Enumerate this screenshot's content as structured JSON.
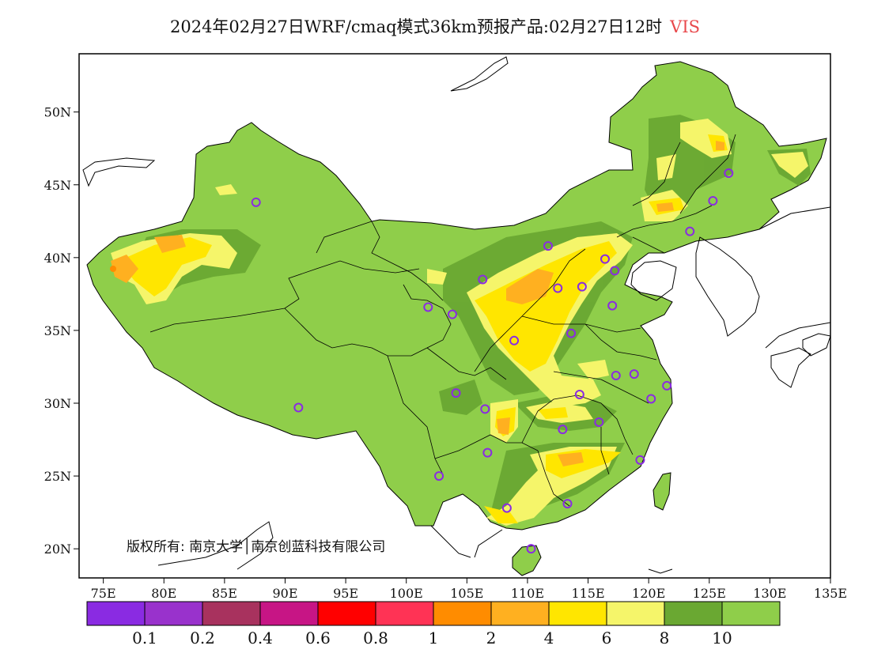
{
  "title": {
    "main": "2024年02月27日WRF/cmaq模式36km预报产品:02月27日12时",
    "variable": "VIS"
  },
  "axes": {
    "lon_min": 73,
    "lon_max": 135,
    "lat_min": 18,
    "lat_max": 54,
    "x_ticks": [
      {
        "lon": 75,
        "label": "75E"
      },
      {
        "lon": 80,
        "label": "80E"
      },
      {
        "lon": 85,
        "label": "85E"
      },
      {
        "lon": 90,
        "label": "90E"
      },
      {
        "lon": 95,
        "label": "95E"
      },
      {
        "lon": 100,
        "label": "100E"
      },
      {
        "lon": 105,
        "label": "105E"
      },
      {
        "lon": 110,
        "label": "110E"
      },
      {
        "lon": 115,
        "label": "115E"
      },
      {
        "lon": 120,
        "label": "120E"
      },
      {
        "lon": 125,
        "label": "125E"
      },
      {
        "lon": 130,
        "label": "130E"
      },
      {
        "lon": 135,
        "label": "135E"
      }
    ],
    "y_ticks": [
      {
        "lat": 20,
        "label": "20N"
      },
      {
        "lat": 25,
        "label": "25N"
      },
      {
        "lat": 30,
        "label": "30N"
      },
      {
        "lat": 35,
        "label": "35N"
      },
      {
        "lat": 40,
        "label": "40N"
      },
      {
        "lat": 45,
        "label": "45N"
      },
      {
        "lat": 50,
        "label": "50N"
      }
    ]
  },
  "copyright": "版权所有: 南京大学│南京创蓝科技有限公司",
  "legend": {
    "colors": [
      "#8a2be2",
      "#9932cc",
      "#a8325e",
      "#c71585",
      "#ff0000",
      "#ff3355",
      "#ff8c00",
      "#ffb020",
      "#ffe600",
      "#f5f56a",
      "#6aa832",
      "#8fce4a"
    ],
    "labels": [
      "0.1",
      "0.2",
      "0.4",
      "0.6",
      "0.8",
      "1",
      "2",
      "4",
      "6",
      "8",
      "10"
    ]
  },
  "colors": {
    "land": "#8fce4a",
    "dark_green": "#6aa832",
    "light_yellow": "#f5f56a",
    "yellow": "#ffe600",
    "orange": "#ffb020",
    "station": "#8a2be2"
  },
  "stations": [
    {
      "lon": 87.6,
      "lat": 43.8
    },
    {
      "lon": 91.1,
      "lat": 29.7
    },
    {
      "lon": 101.8,
      "lat": 36.6
    },
    {
      "lon": 103.8,
      "lat": 36.1
    },
    {
      "lon": 106.3,
      "lat": 38.5
    },
    {
      "lon": 111.7,
      "lat": 40.8
    },
    {
      "lon": 112.5,
      "lat": 37.9
    },
    {
      "lon": 114.5,
      "lat": 38.0
    },
    {
      "lon": 116.4,
      "lat": 39.9
    },
    {
      "lon": 117.2,
      "lat": 39.1
    },
    {
      "lon": 117.0,
      "lat": 36.7
    },
    {
      "lon": 113.6,
      "lat": 34.8
    },
    {
      "lon": 108.9,
      "lat": 34.3
    },
    {
      "lon": 104.1,
      "lat": 30.7
    },
    {
      "lon": 106.5,
      "lat": 29.6
    },
    {
      "lon": 114.3,
      "lat": 30.6
    },
    {
      "lon": 117.3,
      "lat": 31.9
    },
    {
      "lon": 118.8,
      "lat": 32.0
    },
    {
      "lon": 121.5,
      "lat": 31.2
    },
    {
      "lon": 120.2,
      "lat": 30.3
    },
    {
      "lon": 115.9,
      "lat": 28.7
    },
    {
      "lon": 112.9,
      "lat": 28.2
    },
    {
      "lon": 106.7,
      "lat": 26.6
    },
    {
      "lon": 102.7,
      "lat": 25.0
    },
    {
      "lon": 108.3,
      "lat": 22.8
    },
    {
      "lon": 113.3,
      "lat": 23.1
    },
    {
      "lon": 119.3,
      "lat": 26.1
    },
    {
      "lon": 110.3,
      "lat": 20.0
    },
    {
      "lon": 123.4,
      "lat": 41.8
    },
    {
      "lon": 125.3,
      "lat": 43.9
    },
    {
      "lon": 126.6,
      "lat": 45.8
    }
  ]
}
